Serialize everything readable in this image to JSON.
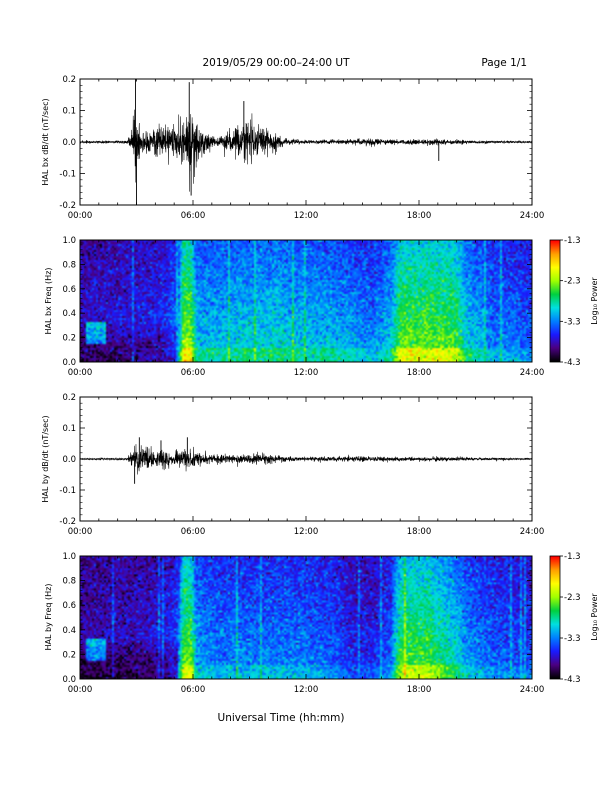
{
  "header": {
    "title": "2019/05/29  00:00–24:00 UT",
    "page": "Page 1/1"
  },
  "footer": {
    "xlabel": "Universal Time (hh:mm)"
  },
  "colors": {
    "trace": "#000000",
    "colormap": [
      "#000000",
      "#4b0082",
      "#1a1aff",
      "#0080ff",
      "#00e0e0",
      "#00d040",
      "#a0ff00",
      "#ffff00",
      "#ffa000",
      "#ff0000"
    ]
  },
  "chart_data": [
    {
      "type": "line",
      "ylabel": "HAL bx dB/dt (nT/sec)",
      "x_unit": "hours UT",
      "xlim": [
        0,
        24
      ],
      "x_ticks": [
        "00:00",
        "06:00",
        "12:00",
        "18:00",
        "24:00"
      ],
      "ylim": [
        -0.2,
        0.2
      ],
      "y_ticks": [
        "-0.2",
        "-0.1",
        "0.0",
        "0.1",
        "0.2"
      ],
      "series": [
        {
          "envelope": [
            [
              0,
              0.006
            ],
            [
              2.5,
              0.008
            ],
            [
              2.8,
              0.07
            ],
            [
              2.95,
              0.2
            ],
            [
              3.05,
              0.09
            ],
            [
              3.5,
              0.07
            ],
            [
              4.0,
              0.08
            ],
            [
              4.5,
              0.09
            ],
            [
              5.0,
              0.09
            ],
            [
              5.5,
              0.1
            ],
            [
              5.75,
              0.16
            ],
            [
              6.0,
              0.19
            ],
            [
              6.3,
              0.1
            ],
            [
              6.8,
              0.05
            ],
            [
              7.3,
              0.02
            ],
            [
              7.8,
              0.05
            ],
            [
              8.3,
              0.07
            ],
            [
              8.8,
              0.12
            ],
            [
              9.3,
              0.08
            ],
            [
              9.8,
              0.07
            ],
            [
              10.3,
              0.06
            ],
            [
              10.8,
              0.02
            ],
            [
              11.5,
              0.012
            ],
            [
              12.5,
              0.01
            ],
            [
              13.5,
              0.012
            ],
            [
              14.5,
              0.014
            ],
            [
              15.0,
              0.018
            ],
            [
              15.5,
              0.025
            ],
            [
              16.0,
              0.015
            ],
            [
              16.8,
              0.012
            ],
            [
              17.5,
              0.014
            ],
            [
              18.5,
              0.015
            ],
            [
              19.0,
              0.02
            ],
            [
              19.5,
              0.012
            ],
            [
              21.0,
              0.008
            ],
            [
              24.0,
              0.005
            ]
          ],
          "spikes": [
            [
              2.95,
              0.2
            ],
            [
              3.0,
              -0.2
            ],
            [
              5.8,
              0.19
            ],
            [
              5.9,
              -0.17
            ],
            [
              8.7,
              0.13
            ],
            [
              19.05,
              -0.06
            ]
          ]
        }
      ]
    },
    {
      "type": "heatmap",
      "ylabel": "HAL bx Freq (Hz)",
      "colorbar_label": "Log₁₀ Power",
      "colorbar_range": [
        -4.3,
        -1.3
      ],
      "colorbar_ticks": [
        "-1.3",
        "-2.3",
        "-3.3",
        "-4.3"
      ],
      "xlim": [
        0,
        24
      ],
      "x_ticks": [
        "00:00",
        "06:00",
        "12:00",
        "18:00",
        "24:00"
      ],
      "ylim": [
        0,
        1.0
      ],
      "y_ticks": [
        "0.0",
        "0.2",
        "0.4",
        "0.6",
        "0.8",
        "1.0"
      ],
      "activity": [
        [
          0,
          0.25
        ],
        [
          3.0,
          0.3
        ],
        [
          4.5,
          0.35
        ],
        [
          5.2,
          0.45
        ],
        [
          5.5,
          0.9
        ],
        [
          5.9,
          0.9
        ],
        [
          6.2,
          0.55
        ],
        [
          7.5,
          0.55
        ],
        [
          9.0,
          0.6
        ],
        [
          10.5,
          0.6
        ],
        [
          12.0,
          0.55
        ],
        [
          13.5,
          0.55
        ],
        [
          14.5,
          0.5
        ],
        [
          15.5,
          0.45
        ],
        [
          16.5,
          0.55
        ],
        [
          17.0,
          0.85
        ],
        [
          18.5,
          0.85
        ],
        [
          20.0,
          0.8
        ],
        [
          20.5,
          0.6
        ],
        [
          22.0,
          0.45
        ],
        [
          24.0,
          0.4
        ]
      ]
    },
    {
      "type": "line",
      "ylabel": "HAL by dB/dt (nT/sec)",
      "x_unit": "hours UT",
      "xlim": [
        0,
        24
      ],
      "x_ticks": [
        "00:00",
        "06:00",
        "12:00",
        "18:00",
        "24:00"
      ],
      "ylim": [
        -0.2,
        0.2
      ],
      "y_ticks": [
        "-0.2",
        "-0.1",
        "0.0",
        "0.1",
        "0.2"
      ],
      "series": [
        {
          "envelope": [
            [
              0,
              0.004
            ],
            [
              2.5,
              0.006
            ],
            [
              2.8,
              0.04
            ],
            [
              3.0,
              0.08
            ],
            [
              3.5,
              0.06
            ],
            [
              4.0,
              0.04
            ],
            [
              4.5,
              0.05
            ],
            [
              5.0,
              0.04
            ],
            [
              5.5,
              0.05
            ],
            [
              5.8,
              0.07
            ],
            [
              6.3,
              0.04
            ],
            [
              7.0,
              0.025
            ],
            [
              8.0,
              0.02
            ],
            [
              9.0,
              0.03
            ],
            [
              10.0,
              0.03
            ],
            [
              11.0,
              0.012
            ],
            [
              12.0,
              0.01
            ],
            [
              13.5,
              0.012
            ],
            [
              15.0,
              0.014
            ],
            [
              16.0,
              0.012
            ],
            [
              17.5,
              0.01
            ],
            [
              19.0,
              0.012
            ],
            [
              21.0,
              0.008
            ],
            [
              24.0,
              0.004
            ]
          ],
          "spikes": [
            [
              2.9,
              -0.08
            ],
            [
              3.15,
              0.07
            ],
            [
              5.7,
              0.07
            ],
            [
              4.3,
              0.06
            ]
          ]
        }
      ]
    },
    {
      "type": "heatmap",
      "ylabel": "HAL by Freq (Hz)",
      "colorbar_label": "Log₁₀ Power",
      "colorbar_range": [
        -4.3,
        -1.3
      ],
      "colorbar_ticks": [
        "-1.3",
        "-2.3",
        "-3.3",
        "-4.3"
      ],
      "xlim": [
        0,
        24
      ],
      "x_ticks": [
        "00:00",
        "06:00",
        "12:00",
        "18:00",
        "24:00"
      ],
      "ylim": [
        0,
        1.0
      ],
      "y_ticks": [
        "0.0",
        "0.2",
        "0.4",
        "0.6",
        "0.8",
        "1.0"
      ],
      "activity": [
        [
          0,
          0.22
        ],
        [
          3.0,
          0.25
        ],
        [
          4.5,
          0.3
        ],
        [
          5.2,
          0.4
        ],
        [
          5.5,
          0.85
        ],
        [
          5.9,
          0.85
        ],
        [
          6.2,
          0.5
        ],
        [
          7.5,
          0.45
        ],
        [
          9.0,
          0.45
        ],
        [
          10.5,
          0.45
        ],
        [
          12.0,
          0.45
        ],
        [
          13.5,
          0.4
        ],
        [
          14.5,
          0.3
        ],
        [
          15.5,
          0.3
        ],
        [
          16.5,
          0.4
        ],
        [
          17.0,
          0.8
        ],
        [
          18.5,
          0.8
        ],
        [
          20.0,
          0.6
        ],
        [
          20.5,
          0.5
        ],
        [
          22.0,
          0.4
        ],
        [
          24.0,
          0.35
        ]
      ]
    }
  ]
}
